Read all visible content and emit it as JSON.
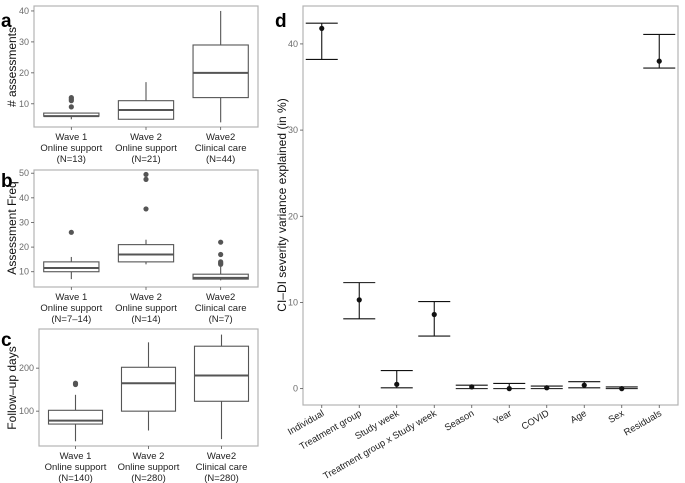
{
  "chart_data": [
    {
      "panel": "a",
      "type": "box",
      "ylabel": "# assessments",
      "ylim": [
        2.5,
        41.6
      ],
      "yticks": [
        10,
        20,
        30,
        40
      ],
      "grid": false,
      "categories": [
        [
          "Wave 1",
          "Online support",
          "(N=13)"
        ],
        [
          "Wave 2",
          "Online support",
          "(N=21)"
        ],
        [
          "Wave2",
          "Clinical care",
          "(N=44)"
        ]
      ],
      "boxes": [
        {
          "min": 5,
          "q1": 6,
          "median": 6,
          "q3": 7,
          "max": 7,
          "outliers": [
            9,
            11,
            11.5,
            12
          ]
        },
        {
          "min": 5,
          "q1": 5,
          "median": 8,
          "q3": 11,
          "max": 17,
          "outliers": []
        },
        {
          "min": 4,
          "q1": 12,
          "median": 20,
          "q3": 29,
          "max": 40,
          "outliers": []
        }
      ]
    },
    {
      "panel": "b",
      "type": "box",
      "ylabel": "Assessment Freq",
      "ylim": [
        3.8,
        51.3
      ],
      "yticks": [
        10,
        20,
        30,
        40,
        50
      ],
      "grid": false,
      "categories": [
        [
          "Wave 1",
          "Online support",
          "(N=7–14)"
        ],
        [
          "Wave 2",
          "Online support",
          "(N=14)"
        ],
        [
          "Wave2",
          "Clinical care",
          "(N=7)"
        ]
      ],
      "boxes": [
        {
          "min": 7,
          "q1": 10,
          "median": 11.5,
          "q3": 14,
          "max": 16,
          "outliers": [
            26
          ]
        },
        {
          "min": 13,
          "q1": 14,
          "median": 17,
          "q3": 21,
          "max": 23,
          "outliers": [
            35.5,
            47.5,
            49.5
          ]
        },
        {
          "min": 6.5,
          "q1": 7,
          "median": 7.5,
          "q3": 9,
          "max": 12,
          "outliers": [
            13,
            13.5,
            14,
            17,
            22
          ]
        }
      ]
    },
    {
      "panel": "c",
      "type": "box",
      "ylabel": "Follow–up days",
      "ylim": [
        19,
        291
      ],
      "yticks": [
        100,
        200
      ],
      "grid": false,
      "categories": [
        [
          "Wave 1",
          "Online support",
          "(N=140)"
        ],
        [
          "Wave 2",
          "Online support",
          "(N=280)"
        ],
        [
          "Wave2",
          "Clinical care",
          "(N=280)"
        ]
      ],
      "boxes": [
        {
          "min": 30,
          "q1": 70,
          "median": 78,
          "q3": 102,
          "max": 138,
          "outliers": [
            162,
            165
          ]
        },
        {
          "min": 55,
          "q1": 100,
          "median": 165,
          "q3": 202,
          "max": 260,
          "outliers": []
        },
        {
          "min": 35,
          "q1": 123,
          "median": 183,
          "q3": 251,
          "max": 278,
          "outliers": []
        }
      ]
    },
    {
      "panel": "d",
      "type": "errorbar",
      "ylabel": "CI–DI severity variance explained (in %)",
      "ylim": [
        -1.9,
        44.4
      ],
      "yticks": [
        0,
        10,
        20,
        30,
        40
      ],
      "grid": false,
      "categories": [
        "Individual",
        "Treatment group",
        "Study week",
        "Treatment group x Study week",
        "Season",
        "Year",
        "COVID",
        "Age",
        "Sex",
        "Residuals"
      ],
      "values": [
        41.8,
        10.3,
        0.5,
        8.6,
        0.2,
        0.0,
        0.1,
        0.4,
        0.0,
        38.0
      ],
      "lower": [
        38.2,
        8.1,
        0.1,
        6.1,
        0.0,
        0.0,
        0.0,
        0.1,
        0.0,
        37.2
      ],
      "upper": [
        42.4,
        12.3,
        2.1,
        10.1,
        0.4,
        0.6,
        0.3,
        0.8,
        0.2,
        41.1
      ]
    }
  ],
  "colors": {
    "box_line": "#555555",
    "outlier": "#555555",
    "point": "#111111",
    "frame": "#b3b3b3"
  }
}
